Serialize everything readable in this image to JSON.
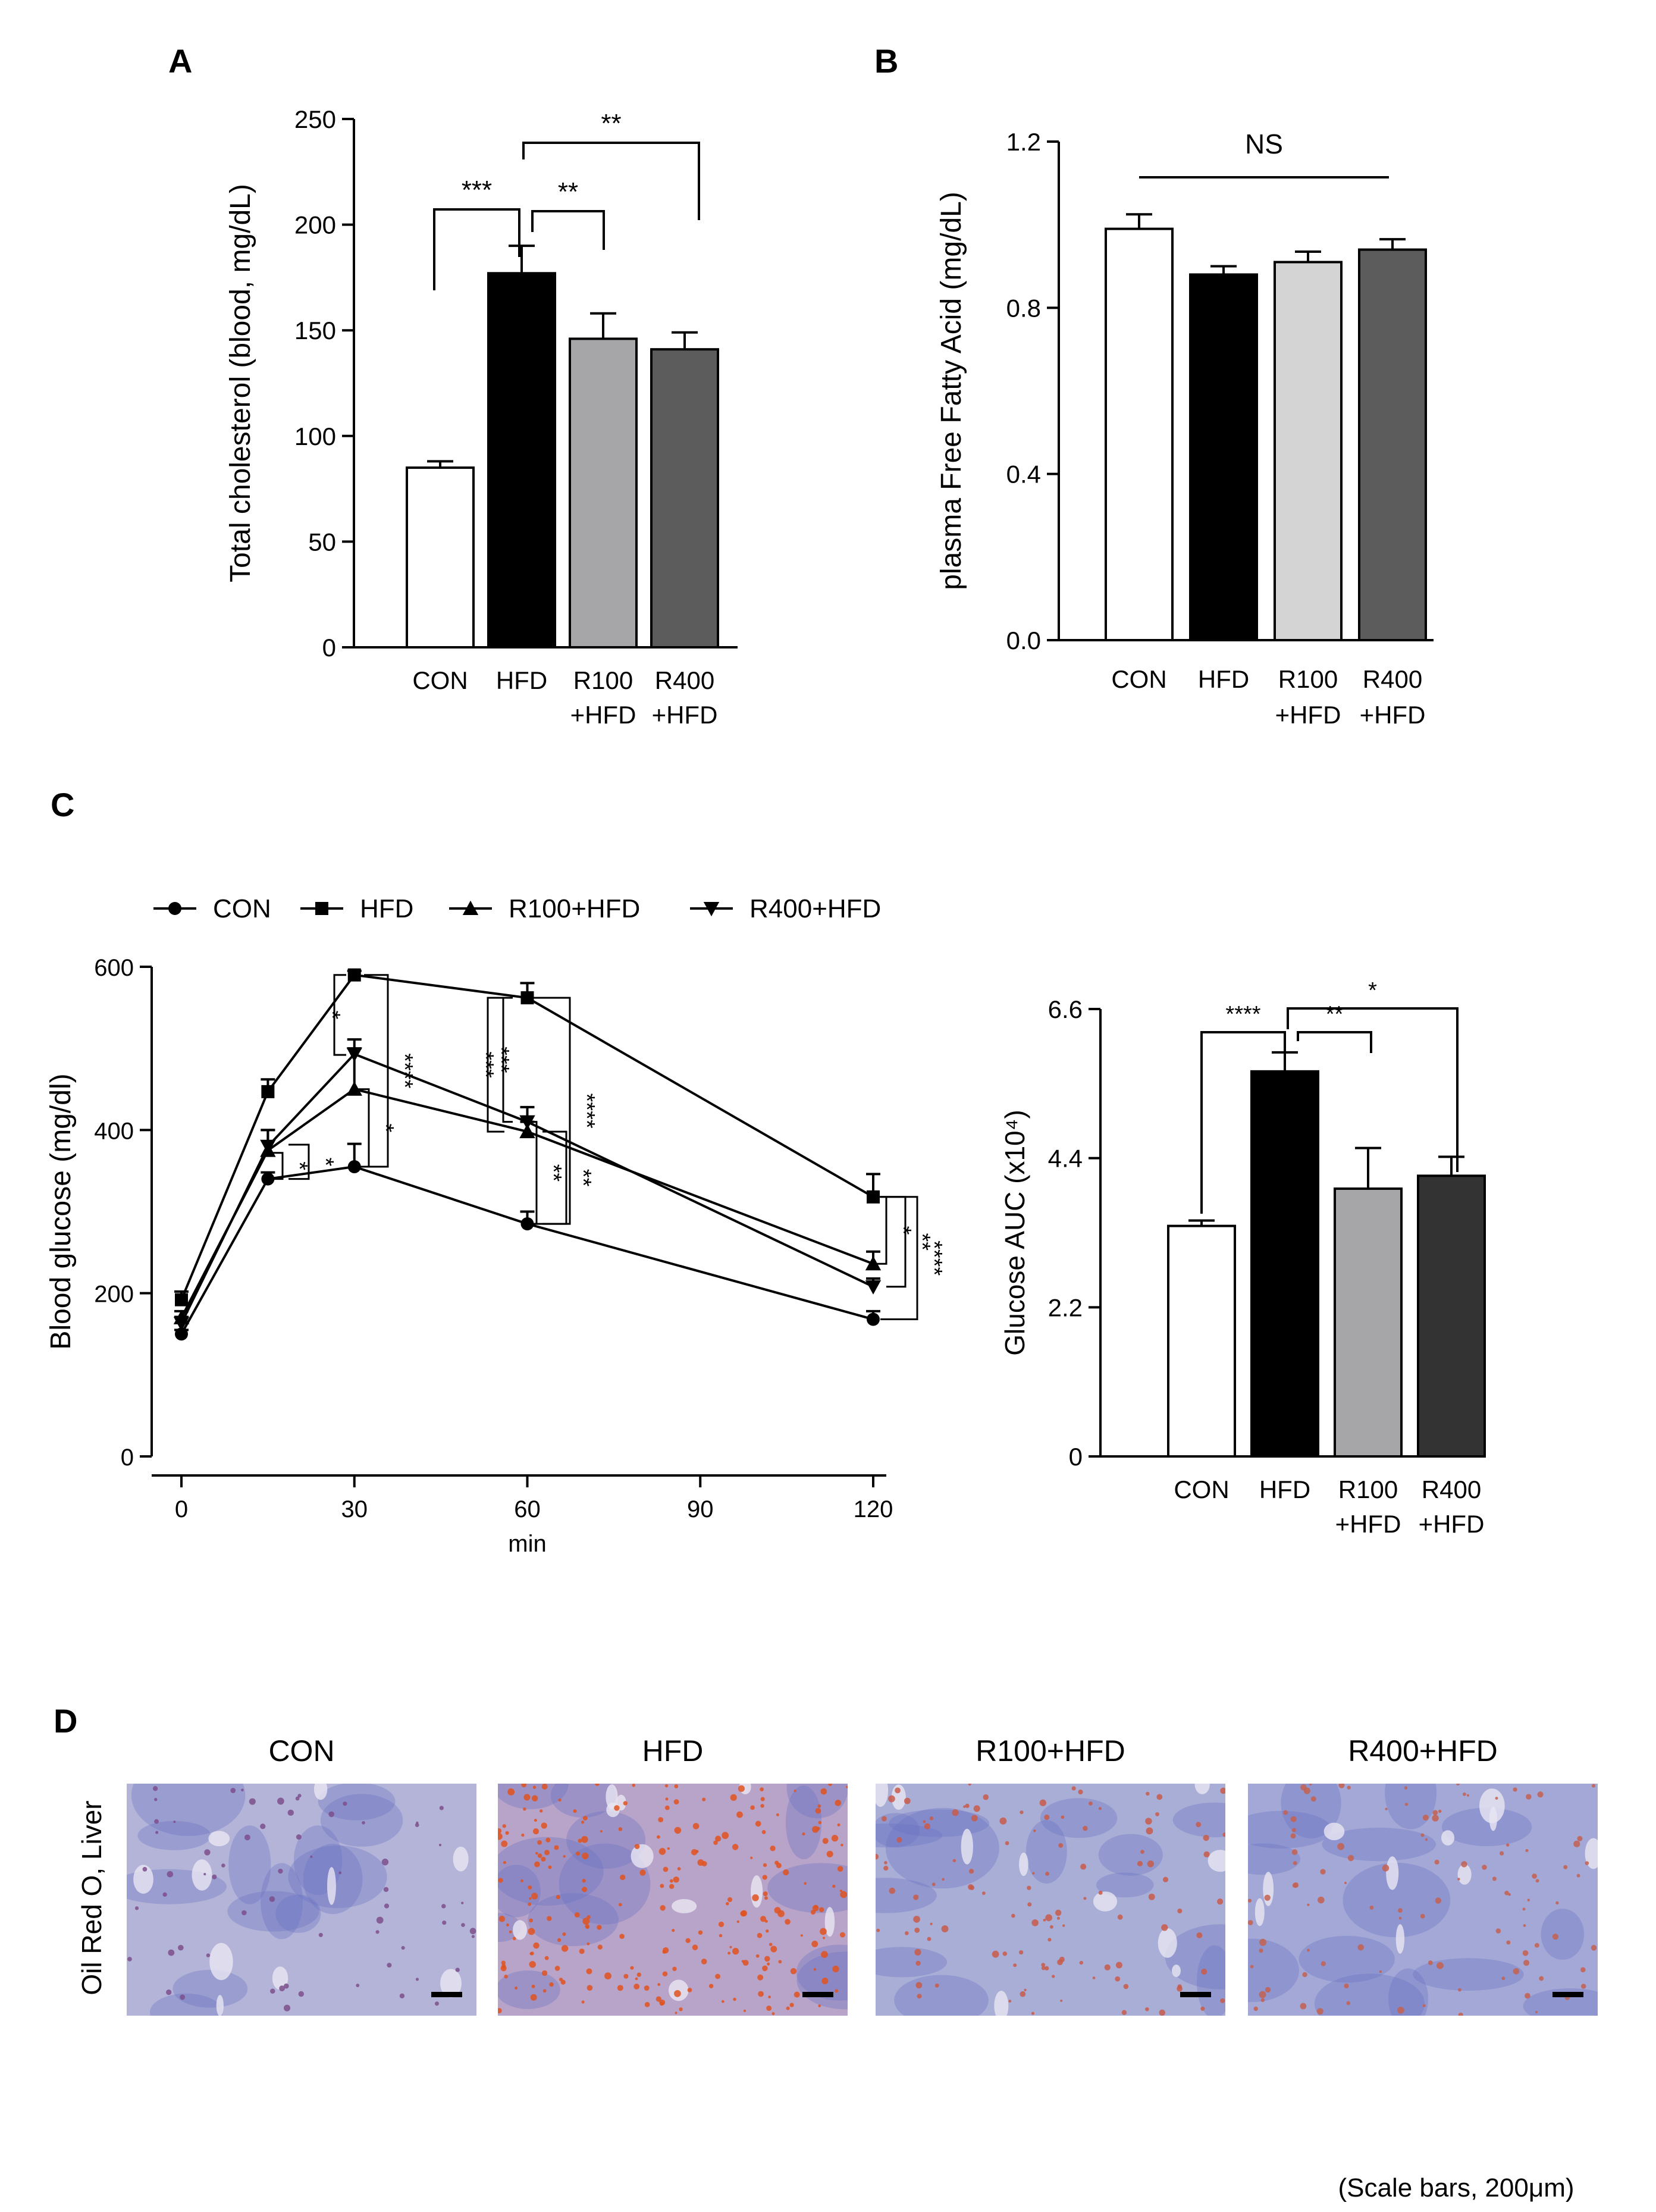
{
  "panels": {
    "A": {
      "letter": "A",
      "chart_data": {
        "type": "bar",
        "categories": [
          [
            "CON"
          ],
          [
            "HFD"
          ],
          [
            "R100",
            "+HFD"
          ],
          [
            "R400",
            "+HFD"
          ]
        ],
        "values": [
          85,
          177,
          146,
          141
        ],
        "errors": [
          3,
          13,
          12,
          8
        ],
        "ylabel": "Total cholesterol (blood, mg/dL)",
        "ylim": [
          0,
          250
        ],
        "yticks": [
          0,
          50,
          100,
          150,
          200,
          250
        ],
        "bar_colors": [
          "#ffffff",
          "#000000",
          "#a6a6a8",
          "#5c5c5c"
        ],
        "annotations": [
          {
            "from": 0,
            "to": 1,
            "label": "***"
          },
          {
            "from": 1,
            "to": 2,
            "label": "**"
          },
          {
            "from": 1,
            "to": 3,
            "label": "**"
          }
        ]
      }
    },
    "B": {
      "letter": "B",
      "chart_data": {
        "type": "bar",
        "categories": [
          [
            "CON"
          ],
          [
            "HFD"
          ],
          [
            "R100",
            "+HFD"
          ],
          [
            "R400",
            "+HFD"
          ]
        ],
        "values": [
          0.99,
          0.88,
          0.91,
          0.94
        ],
        "errors": [
          0.035,
          0.02,
          0.025,
          0.025
        ],
        "ylabel": "plasma Free Fatty Acid (mg/dL)",
        "ylim": [
          0,
          1.2
        ],
        "yticks": [
          "0.0",
          "0.4",
          "0.8",
          "1.2"
        ],
        "bar_colors": [
          "#ffffff",
          "#000000",
          "#d4d4d4",
          "#5c5c5c"
        ],
        "annotations": [
          {
            "label": "NS"
          }
        ]
      }
    },
    "C": {
      "letter": "C",
      "line_chart": {
        "type": "line",
        "xlabel": "min",
        "ylabel": "Blood glucose (mg/dl)",
        "x": [
          0,
          15,
          30,
          60,
          120
        ],
        "xticks": [
          0,
          30,
          60,
          90,
          120
        ],
        "yticks": [
          0,
          200,
          400,
          600
        ],
        "xlim": [
          -5,
          127
        ],
        "ylim": [
          0,
          600
        ],
        "series": [
          {
            "name": "CON",
            "marker": "circle",
            "values": [
              150,
              340,
              355,
              285,
              168
            ],
            "errors": [
              5,
              8,
              28,
              15,
              10
            ]
          },
          {
            "name": "HFD",
            "marker": "square",
            "values": [
              192,
              447,
              590,
              562,
              318
            ],
            "errors": [
              10,
              15,
              5,
              18,
              28
            ]
          },
          {
            "name": "R100+HFD",
            "marker": "triangle-up",
            "values": [
              170,
              375,
              450,
              398,
              236
            ],
            "errors": [
              8,
              25,
              50,
              12,
              15
            ]
          },
          {
            "name": "R400+HFD",
            "marker": "triangle-down",
            "values": [
              163,
              380,
              493,
              410,
              208
            ],
            "errors": [
              8,
              20,
              18,
              18,
              10
            ]
          }
        ],
        "annotations": [
          "*",
          "*",
          "*",
          "*",
          "****",
          "***",
          "***",
          "**",
          "**",
          "****",
          "*",
          "**",
          "****"
        ]
      },
      "bar_chart": {
        "type": "bar",
        "categories": [
          [
            "CON"
          ],
          [
            "HFD"
          ],
          [
            "R100",
            "+HFD"
          ],
          [
            "R400",
            "+HFD"
          ]
        ],
        "values": [
          3.4,
          5.68,
          3.95,
          4.14
        ],
        "errors": [
          0.08,
          0.28,
          0.6,
          0.28
        ],
        "ylabel": "Glucose AUC (x10⁴)",
        "ylim": [
          0,
          6.6
        ],
        "yticks": [
          "0",
          "2.2",
          "4.4",
          "6.6"
        ],
        "bar_colors": [
          "#ffffff",
          "#000000",
          "#a6a6a8",
          "#333333"
        ],
        "annotations": [
          {
            "from": 0,
            "to": 1,
            "label": "****"
          },
          {
            "from": 1,
            "to": 2,
            "label": "**"
          },
          {
            "from": 1,
            "to": 3,
            "label": "*"
          }
        ]
      }
    },
    "D": {
      "letter": "D",
      "row_label": "Oil Red O, Liver",
      "images": [
        {
          "title": "CON",
          "base": "#b4b4d8",
          "dot": "#7d4e8c",
          "density": 0.25
        },
        {
          "title": "HFD",
          "base": "#b8a4c8",
          "dot": "#e0521e",
          "density": 0.95
        },
        {
          "title": "R100+HFD",
          "base": "#a9aed6",
          "dot": "#c85a4a",
          "density": 0.45
        },
        {
          "title": "R400+HFD",
          "base": "#a4a8d6",
          "dot": "#c46050",
          "density": 0.4
        }
      ],
      "scale_note": "(Scale bars, 200μm)"
    }
  }
}
